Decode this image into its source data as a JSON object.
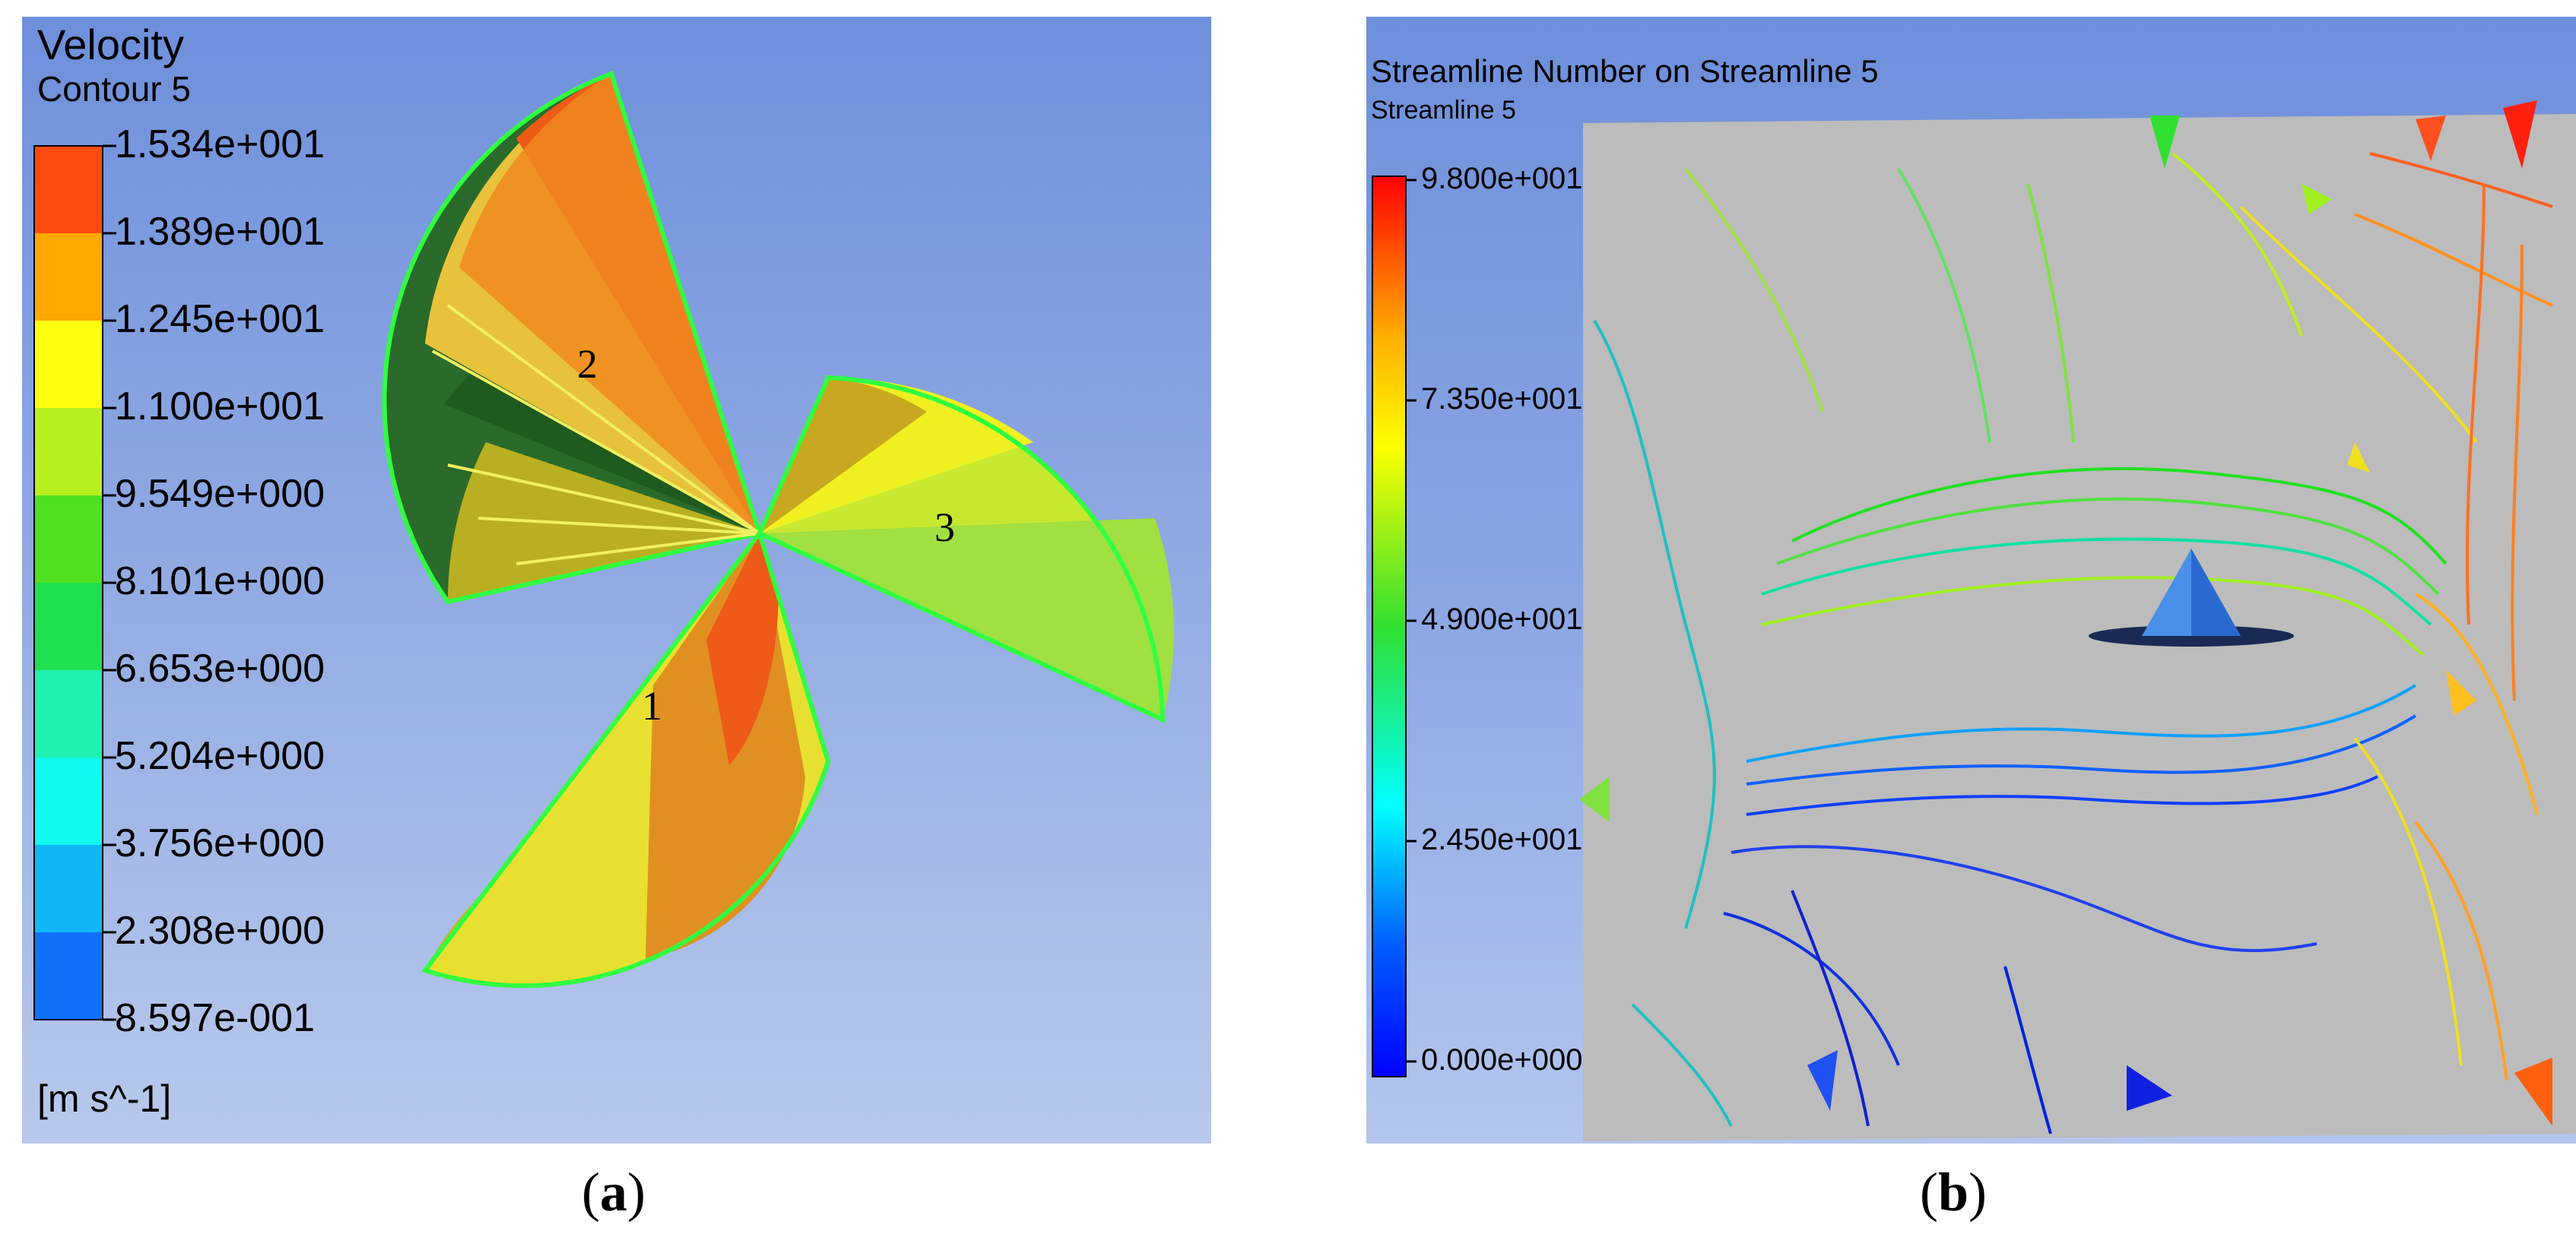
{
  "panel_a": {
    "title": "Velocity",
    "subtitle": "Contour 5",
    "unit": "[m s^-1]",
    "levels": [
      "1.534e+001",
      "1.389e+001",
      "1.245e+001",
      "1.100e+001",
      "9.549e+000",
      "8.101e+000",
      "6.653e+000",
      "5.204e+000",
      "3.756e+000",
      "2.308e+000",
      "8.597e-001"
    ],
    "band_colors": [
      "#ff4a10",
      "#ffa800",
      "#ffff10",
      "#b8f020",
      "#50e020",
      "#20e050",
      "#20f0b0",
      "#10f8f0",
      "#10b8f8",
      "#1070f8"
    ],
    "blade_labels": [
      "1",
      "2",
      "3"
    ]
  },
  "panel_b": {
    "title": "Streamline Number on Streamline 5",
    "subtitle": "Streamline 5",
    "levels": [
      "9.800e+001",
      "7.350e+001",
      "4.900e+001",
      "2.450e+001",
      "0.000e+000"
    ],
    "gradient_colors": [
      "#ff0000",
      "#ffb000",
      "#ffff00",
      "#30e030",
      "#00ffff",
      "#0060ff",
      "#0000ff"
    ]
  },
  "captions": {
    "a_open": "(",
    "a_letter": "a",
    "a_close": ")",
    "b_open": "(",
    "b_letter": "b",
    "b_close": ")"
  }
}
